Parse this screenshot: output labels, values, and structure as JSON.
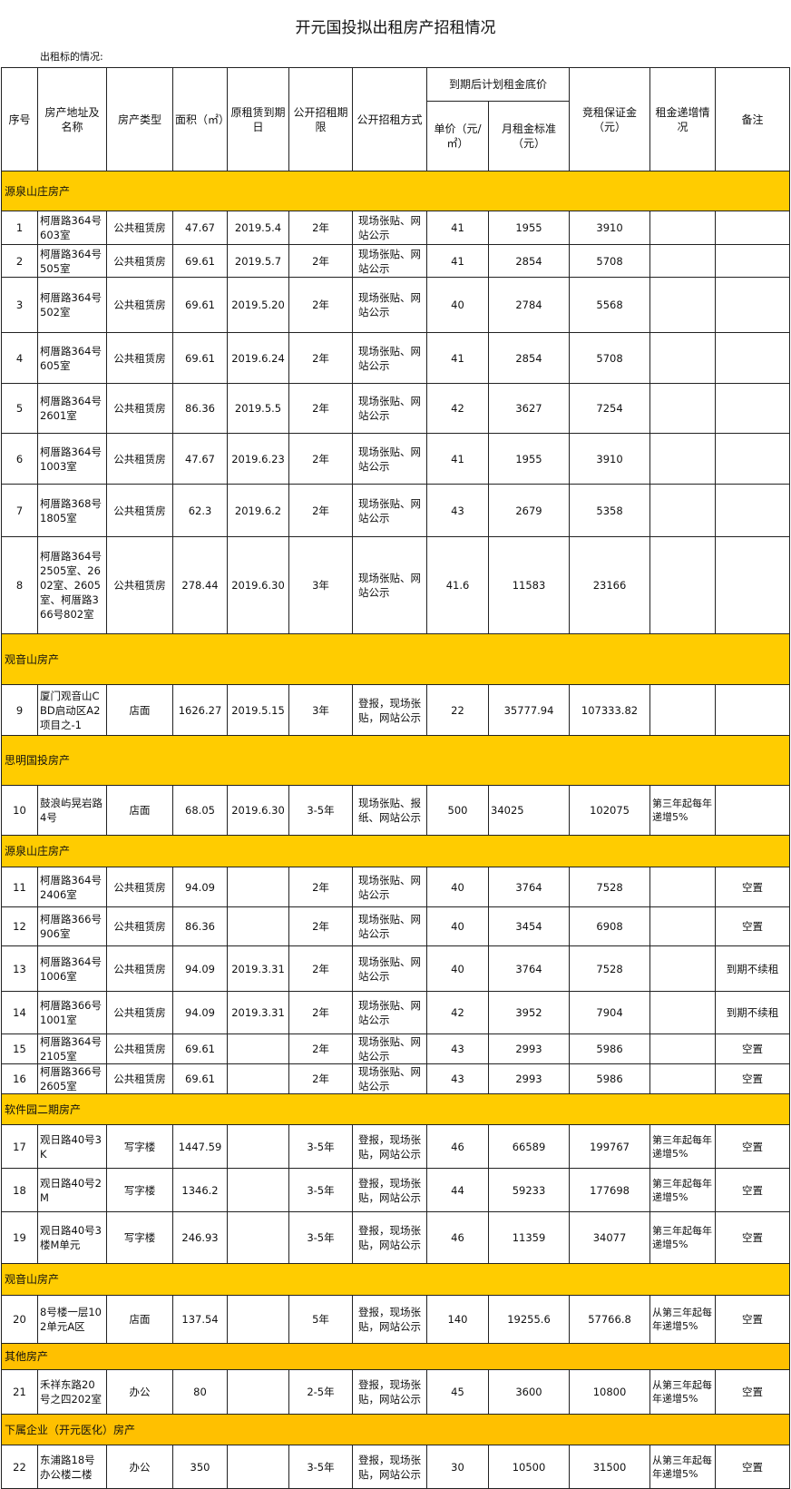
{
  "title": "开元国投拟出租房产招租情况",
  "subtitle": "出租标的情况:",
  "colors": {
    "section_yellow": "#FFCC00",
    "section_orange": "#FFC000"
  },
  "headers": {
    "no": "序号",
    "address": "房产地址及名称",
    "type": "房产类型",
    "area": "面积（㎡）",
    "expiry": "原租赁到期日",
    "term": "公开招租期限",
    "method": "公开招租方式",
    "base_price": "到期后计划租金底价",
    "unit_price": "单价（元/㎡）",
    "monthly_rent": "月租金标准（元）",
    "deposit": "竞租保证金（元）",
    "increase": "租金递增情况",
    "remarks": "备注"
  },
  "sections": [
    {
      "name": "源泉山庄房产",
      "color": "#FFCC00",
      "rows": [
        {
          "no": "1",
          "address": "柯厝路364号603室",
          "type": "公共租赁房",
          "area": "47.67",
          "expiry": "2019.5.4",
          "term": "2年",
          "method": "现场张贴、网站公示",
          "unit": "41",
          "monthly": "1955",
          "deposit": "3910",
          "increase": "",
          "remarks": ""
        },
        {
          "no": "2",
          "address": "柯厝路364号505室",
          "type": "公共租赁房",
          "area": "69.61",
          "expiry": "2019.5.7",
          "term": "2年",
          "method": "现场张贴、网站公示",
          "unit": "41",
          "monthly": "2854",
          "deposit": "5708",
          "increase": "",
          "remarks": ""
        },
        {
          "no": "3",
          "address": "柯厝路364号502室",
          "type": "公共租赁房",
          "area": "69.61",
          "expiry": "2019.5.20",
          "term": "2年",
          "method": "现场张贴、网站公示",
          "unit": "40",
          "monthly": "2784",
          "deposit": "5568",
          "increase": "",
          "remarks": ""
        },
        {
          "no": "4",
          "address": "柯厝路364号605室",
          "type": "公共租赁房",
          "area": "69.61",
          "expiry": "2019.6.24",
          "term": "2年",
          "method": "现场张贴、网站公示",
          "unit": "41",
          "monthly": "2854",
          "deposit": "5708",
          "increase": "",
          "remarks": ""
        },
        {
          "no": "5",
          "address": "柯厝路364号2601室",
          "type": "公共租赁房",
          "area": "86.36",
          "expiry": "2019.5.5",
          "term": "2年",
          "method": "现场张贴、网站公示",
          "unit": "42",
          "monthly": "3627",
          "deposit": "7254",
          "increase": "",
          "remarks": ""
        },
        {
          "no": "6",
          "address": "柯厝路364号1003室",
          "type": "公共租赁房",
          "area": "47.67",
          "expiry": "2019.6.23",
          "term": "2年",
          "method": "现场张贴、网站公示",
          "unit": "41",
          "monthly": "1955",
          "deposit": "3910",
          "increase": "",
          "remarks": ""
        },
        {
          "no": "7",
          "address": "柯厝路368号1805室",
          "type": "公共租赁房",
          "area": "62.3",
          "expiry": "2019.6.2",
          "term": "2年",
          "method": "现场张贴、网站公示",
          "unit": "43",
          "monthly": "2679",
          "deposit": "5358",
          "increase": "",
          "remarks": ""
        },
        {
          "no": "8",
          "address": "柯厝路364号2505室、2602室、2605室、柯厝路366号802室",
          "type": "公共租赁房",
          "area": "278.44",
          "expiry": "2019.6.30",
          "term": "3年",
          "method": "现场张贴、网站公示",
          "unit": "41.6",
          "monthly": "11583",
          "deposit": "23166",
          "increase": "",
          "remarks": ""
        }
      ]
    },
    {
      "name": "观音山房产",
      "color": "#FFCC00",
      "rows": [
        {
          "no": "9",
          "address": "厦门观音山CBD启动区A2项目之-1",
          "type": "店面",
          "area": "1626.27",
          "expiry": "2019.5.15",
          "term": "3年",
          "method": "登报，现场张贴，网站公示",
          "unit": "22",
          "monthly": "35777.94",
          "deposit": "107333.82",
          "increase": "",
          "remarks": ""
        }
      ]
    },
    {
      "name": "思明国投房产",
      "color": "#FFCC00",
      "rows": [
        {
          "no": "10",
          "address": "鼓浪屿晃岩路4号",
          "type": "店面",
          "area": "68.05",
          "expiry": "2019.6.30",
          "term": "3-5年",
          "method": "现场张贴、报纸、网站公示",
          "unit": "500",
          "monthly": "34025",
          "deposit": "102075",
          "increase": "第三年起每年递增5%",
          "remarks": ""
        }
      ]
    },
    {
      "name": "源泉山庄房产",
      "color": "#FFCC00",
      "rows": [
        {
          "no": "11",
          "address": "柯厝路364号2406室",
          "type": "公共租赁房",
          "area": "94.09",
          "expiry": "",
          "term": "2年",
          "method": "现场张贴、网站公示",
          "unit": "40",
          "monthly": "3764",
          "deposit": "7528",
          "increase": "",
          "remarks": "空置"
        },
        {
          "no": "12",
          "address": "柯厝路366号906室",
          "type": "公共租赁房",
          "area": "86.36",
          "expiry": "",
          "term": "2年",
          "method": "现场张贴、网站公示",
          "unit": "40",
          "monthly": "3454",
          "deposit": "6908",
          "increase": "",
          "remarks": "空置"
        },
        {
          "no": "13",
          "address": "柯厝路364号1006室",
          "type": "公共租赁房",
          "area": "94.09",
          "expiry": "2019.3.31",
          "term": "2年",
          "method": "现场张贴、网站公示",
          "unit": "40",
          "monthly": "3764",
          "deposit": "7528",
          "increase": "",
          "remarks": "到期不续租"
        },
        {
          "no": "14",
          "address": "柯厝路366号1001室",
          "type": "公共租赁房",
          "area": "94.09",
          "expiry": "2019.3.31",
          "term": "2年",
          "method": "现场张贴、网站公示",
          "unit": "42",
          "monthly": "3952",
          "deposit": "7904",
          "increase": "",
          "remarks": "到期不续租"
        },
        {
          "no": "15",
          "address": "柯厝路364号2105室",
          "type": "公共租赁房",
          "area": "69.61",
          "expiry": "",
          "term": "2年",
          "method": "现场张贴、网站公示",
          "unit": "43",
          "monthly": "2993",
          "deposit": "5986",
          "increase": "",
          "remarks": "空置"
        },
        {
          "no": "16",
          "address": "柯厝路366号2605室",
          "type": "公共租赁房",
          "area": "69.61",
          "expiry": "",
          "term": "2年",
          "method": "现场张贴、网站公示",
          "unit": "43",
          "monthly": "2993",
          "deposit": "5986",
          "increase": "",
          "remarks": "空置"
        }
      ]
    },
    {
      "name": "软件园二期房产",
      "color": "#FFCC00",
      "rows": [
        {
          "no": "17",
          "address": "观日路40号3K",
          "type": "写字楼",
          "area": "1447.59",
          "expiry": "",
          "term": "3-5年",
          "method": "登报，现场张贴，网站公示",
          "unit": "46",
          "monthly": "66589",
          "deposit": "199767",
          "increase": "第三年起每年递增5%",
          "remarks": "空置"
        },
        {
          "no": "18",
          "address": "观日路40号2M",
          "type": "写字楼",
          "area": "1346.2",
          "expiry": "",
          "term": "3-5年",
          "method": "登报，现场张贴，网站公示",
          "unit": "44",
          "monthly": "59233",
          "deposit": "177698",
          "increase": "第三年起每年递增5%",
          "remarks": "空置"
        },
        {
          "no": "19",
          "address": "观日路40号3楼M单元",
          "type": "写字楼",
          "area": "246.93",
          "expiry": "",
          "term": "3-5年",
          "method": "登报，现场张贴，网站公示",
          "unit": "46",
          "monthly": "11359",
          "deposit": "34077",
          "increase": "第三年起每年递增5%",
          "remarks": "空置"
        }
      ]
    },
    {
      "name": "观音山房产",
      "color": "#FFCC00",
      "rows": [
        {
          "no": "20",
          "address": "8号楼一层102单元A区",
          "type": "店面",
          "area": "137.54",
          "expiry": "",
          "term": "5年",
          "method": "登报，现场张贴，网站公示",
          "unit": "140",
          "monthly": "19255.6",
          "deposit": "57766.8",
          "increase": "从第三年起每年递增5%",
          "remarks": "空置"
        }
      ]
    },
    {
      "name": "其他房产",
      "color": "#FFC000",
      "rows": [
        {
          "no": "21",
          "address": "禾祥东路20号之四202室",
          "type": "办公",
          "area": "80",
          "expiry": "",
          "term": "2-5年",
          "method": "登报，现场张贴，网站公示",
          "unit": "45",
          "monthly": "3600",
          "deposit": "10800",
          "increase": "从第三年起每年递增5%",
          "remarks": "空置"
        }
      ]
    },
    {
      "name": "下属企业（开元医化）房产",
      "color": "#FFC000",
      "rows": [
        {
          "no": "22",
          "address": "东浦路18号办公楼二楼",
          "type": "办公",
          "area": "350",
          "expiry": "",
          "term": "3-5年",
          "method": "登报，现场张贴，网站公示",
          "unit": "30",
          "monthly": "10500",
          "deposit": "31500",
          "increase": "从第三年起每年递增5%",
          "remarks": "空置"
        }
      ]
    }
  ]
}
